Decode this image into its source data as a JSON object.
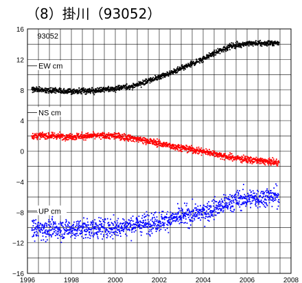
{
  "title": "（8）掛川（93052）",
  "chart_data": {
    "type": "scatter",
    "station_label": "93052",
    "xlim": [
      1996,
      2008
    ],
    "ylim": [
      -16,
      16
    ],
    "x_ticks": [
      1996,
      1998,
      2000,
      2002,
      2004,
      2006,
      2008
    ],
    "x_tick_labels": [
      "1996",
      "1998",
      "2000",
      "2002",
      "2004",
      "2006",
      "2008"
    ],
    "y_ticks": [
      -16,
      -12,
      -8,
      -4,
      0,
      4,
      8,
      12,
      16
    ],
    "y_tick_labels": [
      "−16",
      "−12",
      "−8",
      "−4",
      "0",
      "4",
      "8",
      "12",
      "16"
    ],
    "grid": true,
    "series": [
      {
        "name": "EW cm",
        "color": "#000000",
        "scatter": 0.25,
        "profile": [
          [
            1996.2,
            8.1
          ],
          [
            1997.0,
            8.0
          ],
          [
            1998.0,
            7.8
          ],
          [
            1999.0,
            7.9
          ],
          [
            2000.0,
            8.2
          ],
          [
            2000.8,
            8.5
          ],
          [
            2001.5,
            9.2
          ],
          [
            2002.5,
            10.2
          ],
          [
            2003.5,
            11.4
          ],
          [
            2004.5,
            12.8
          ],
          [
            2005.2,
            13.7
          ],
          [
            2006.0,
            14.1
          ],
          [
            2007.0,
            14.1
          ],
          [
            2007.45,
            14.2
          ]
        ]
      },
      {
        "name": "NS cm",
        "color": "#ff0000",
        "scatter": 0.3,
        "profile": [
          [
            1996.2,
            2.0
          ],
          [
            1997.0,
            2.0
          ],
          [
            1998.0,
            1.9
          ],
          [
            1999.0,
            2.0
          ],
          [
            2000.0,
            2.0
          ],
          [
            2000.8,
            1.7
          ],
          [
            2001.5,
            1.3
          ],
          [
            2002.5,
            0.7
          ],
          [
            2003.5,
            0.2
          ],
          [
            2004.5,
            -0.3
          ],
          [
            2005.0,
            -0.7
          ],
          [
            2006.0,
            -1.1
          ],
          [
            2007.0,
            -1.4
          ],
          [
            2007.45,
            -1.5
          ]
        ]
      },
      {
        "name": "UP cm",
        "color": "#0000ff",
        "scatter": 0.9,
        "profile": [
          [
            1996.2,
            -10.2
          ],
          [
            1997.0,
            -10.2
          ],
          [
            1998.0,
            -10.2
          ],
          [
            1999.0,
            -10.1
          ],
          [
            2000.0,
            -10.0
          ],
          [
            2001.0,
            -9.6
          ],
          [
            2002.0,
            -9.2
          ],
          [
            2003.0,
            -8.6
          ],
          [
            2004.0,
            -8.0
          ],
          [
            2004.8,
            -7.2
          ],
          [
            2005.5,
            -6.4
          ],
          [
            2006.5,
            -6.1
          ],
          [
            2007.45,
            -5.9
          ]
        ]
      }
    ]
  }
}
